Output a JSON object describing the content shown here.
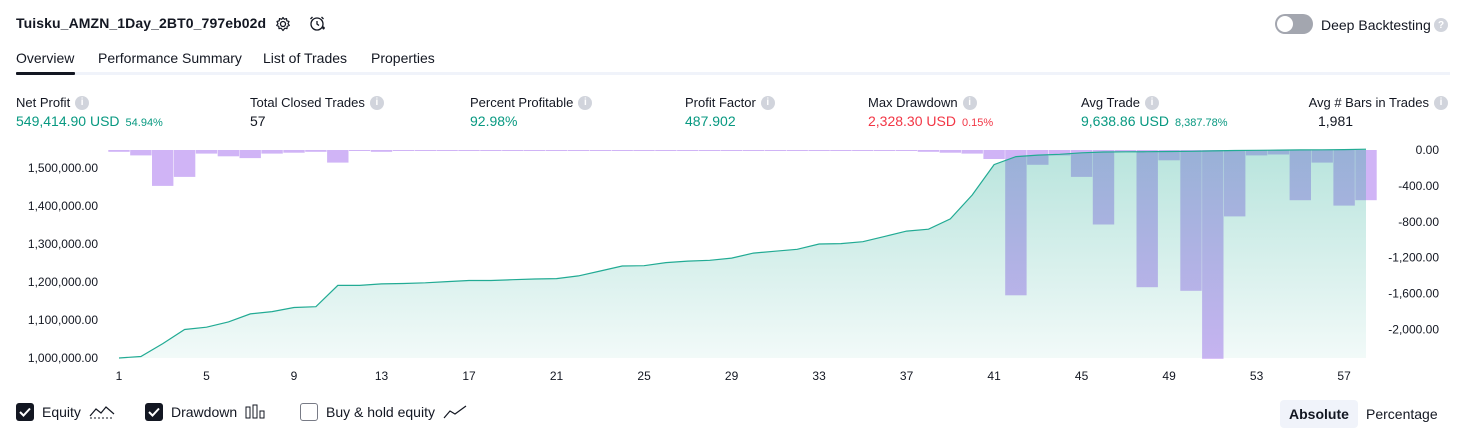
{
  "header": {
    "strategy_name": "Tuisku_AMZN_1Day_2BT0_797eb02d",
    "deep_backtesting_label": "Deep Backtesting"
  },
  "tabs": [
    {
      "label": "Overview",
      "active": true
    },
    {
      "label": "Performance Summary",
      "active": false
    },
    {
      "label": "List of Trades",
      "active": false
    },
    {
      "label": "Properties",
      "active": false
    }
  ],
  "metrics": [
    {
      "label": "Net Profit",
      "value": "549,414.90 USD",
      "pct": "54.94%",
      "color": "green"
    },
    {
      "label": "Total Closed Trades",
      "value": "57",
      "pct": "",
      "color": "dark"
    },
    {
      "label": "Percent Profitable",
      "value": "92.98%",
      "pct": "",
      "color": "green"
    },
    {
      "label": "Profit Factor",
      "value": "487.902",
      "pct": "",
      "color": "green"
    },
    {
      "label": "Max Drawdown",
      "value": "2,328.30 USD",
      "pct": "0.15%",
      "color": "red"
    },
    {
      "label": "Avg Trade",
      "value": "9,638.86 USD",
      "pct": "8,387.78%",
      "color": "green"
    },
    {
      "label": "Avg # Bars in Trades",
      "value": "1,981",
      "pct": "",
      "color": "dark"
    }
  ],
  "chart_data": {
    "type": "area",
    "x_ticks": [
      "1",
      "5",
      "9",
      "13",
      "17",
      "21",
      "25",
      "29",
      "33",
      "37",
      "41",
      "45",
      "49",
      "53",
      "57"
    ],
    "left_axis": {
      "ticks": [
        "1,000,000.00",
        "1,100,000.00",
        "1,200,000.00",
        "1,300,000.00",
        "1,400,000.00",
        "1,500,000.00"
      ],
      "ylim": [
        1000000,
        1550000
      ]
    },
    "right_axis": {
      "ticks": [
        "0.00",
        "-400.00",
        "-800.00",
        "-1,200.00",
        "-1,600.00",
        "-2,000.00"
      ],
      "ylim": [
        -2330,
        0
      ]
    },
    "series": [
      {
        "name": "Equity",
        "color": "#22ab94",
        "values": [
          1000000,
          1004000,
          1038000,
          1075000,
          1081000,
          1095000,
          1116000,
          1122000,
          1133000,
          1135000,
          1191000,
          1191000,
          1195000,
          1196000,
          1198000,
          1201000,
          1204000,
          1204000,
          1206000,
          1208000,
          1209000,
          1216000,
          1229000,
          1242000,
          1243000,
          1251000,
          1255000,
          1257000,
          1263000,
          1276000,
          1281000,
          1286000,
          1300000,
          1301000,
          1306000,
          1320000,
          1334000,
          1339000,
          1366000,
          1429000,
          1509000,
          1530000,
          1534000,
          1536000,
          1540000,
          1542000,
          1542500,
          1543000,
          1543500,
          1544000,
          1545000,
          1546000,
          1546500,
          1547000,
          1547500,
          1548000,
          1548500,
          1549415
        ]
      },
      {
        "name": "Drawdown",
        "color": "#c8a7f4",
        "values": [
          -20,
          -60,
          -400,
          -300,
          -40,
          -70,
          -90,
          -40,
          -30,
          -20,
          -140,
          -10,
          -20,
          -5,
          -5,
          -5,
          -5,
          -5,
          -5,
          -5,
          -5,
          -10,
          -10,
          -10,
          -5,
          -10,
          -5,
          -10,
          -10,
          -5,
          -5,
          -10,
          -5,
          -5,
          -10,
          -10,
          -5,
          -20,
          -30,
          -40,
          -100,
          -1620,
          -165,
          -60,
          -300,
          -830,
          -20,
          -1530,
          -115,
          -1570,
          -2328,
          -740,
          -60,
          -50,
          -560,
          -140,
          -620,
          -560
        ]
      }
    ],
    "legend": [
      "Equity",
      "Drawdown",
      "Buy & hold equity"
    ],
    "legend_state": [
      true,
      true,
      false
    ]
  },
  "legend_labels": {
    "equity": "Equity",
    "drawdown": "Drawdown",
    "buy_hold": "Buy & hold equity"
  },
  "scale_modes": {
    "absolute": "Absolute",
    "percentage": "Percentage",
    "selected": "Absolute"
  },
  "colors": {
    "equity_line": "#22ab94",
    "equity_fill": "#22ab94",
    "drawdown": "#c8a7f4",
    "profit_green": "#089981",
    "loss_red": "#f23645"
  }
}
